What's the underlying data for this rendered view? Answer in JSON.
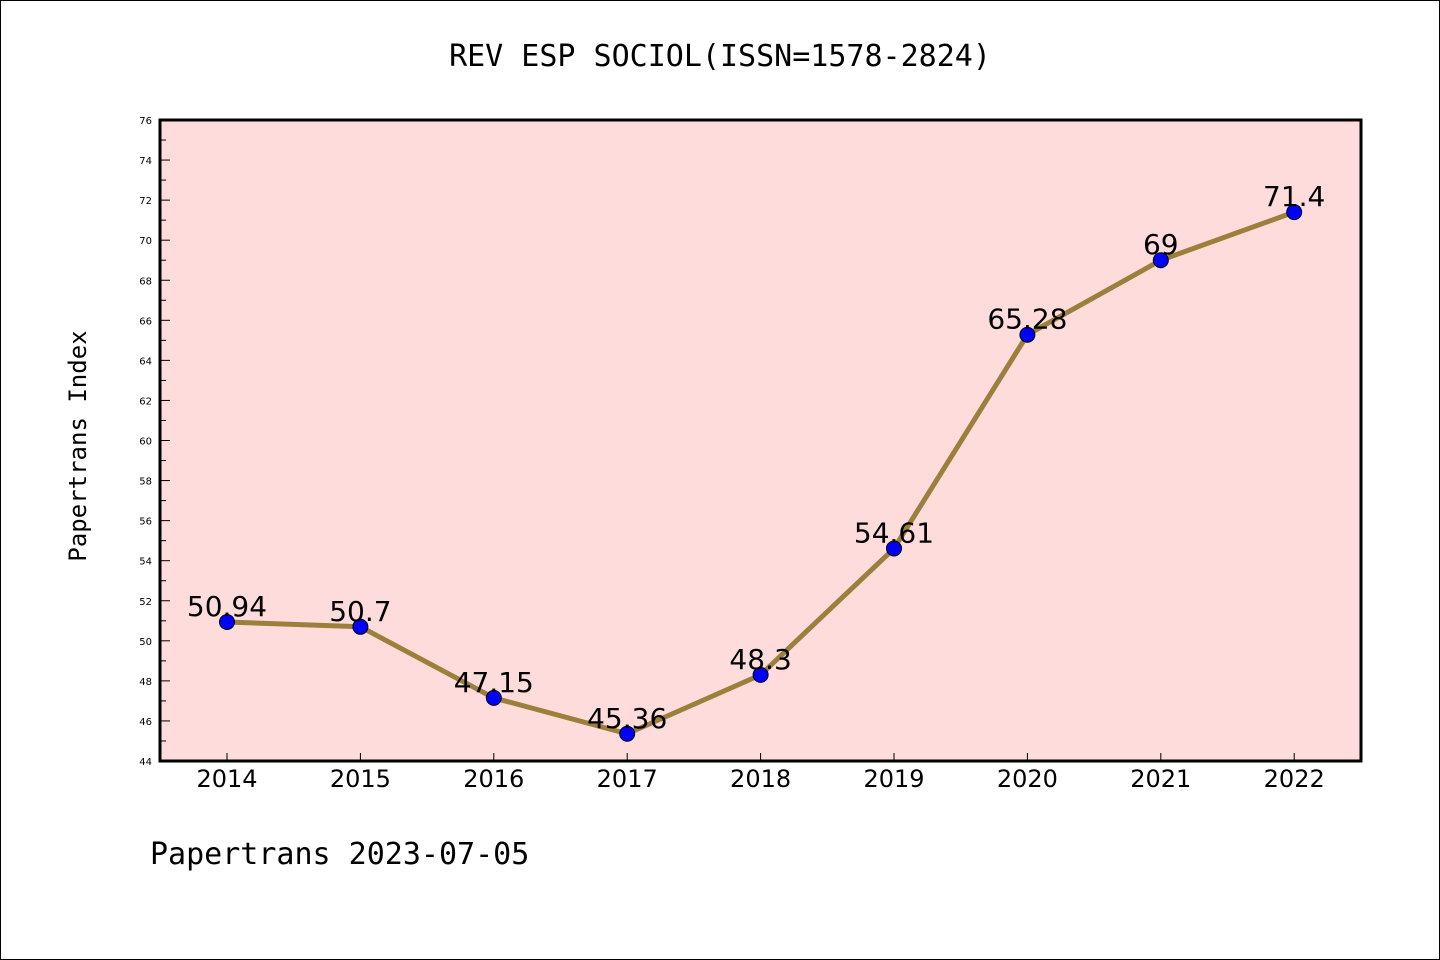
{
  "chart_data": {
    "type": "line",
    "title": "REV ESP SOCIOL(ISSN=1578-2824)",
    "ylabel": "Papertrans Index",
    "xlabel": "",
    "categories": [
      "2014",
      "2015",
      "2016",
      "2017",
      "2018",
      "2019",
      "2020",
      "2021",
      "2022"
    ],
    "series": [
      {
        "values": [
          50.94,
          50.7,
          47.15,
          45.36,
          48.3,
          54.61,
          65.28,
          69,
          71.4
        ],
        "labels": [
          "50.94",
          "50.7",
          "47.15",
          "45.36",
          "48.3",
          "54.61",
          "65.28",
          "69",
          "71.4"
        ],
        "line_color": "#9b7f3a",
        "marker_color": "#0000ff"
      }
    ],
    "ylim": [
      44,
      76
    ],
    "yticks": [
      44,
      46,
      48,
      50,
      52,
      54,
      56,
      58,
      60,
      62,
      64,
      66,
      68,
      70,
      72,
      74,
      76
    ],
    "plot_background": "#ffdcdc",
    "grid": false,
    "footer": "Papertrans 2023-07-05"
  }
}
